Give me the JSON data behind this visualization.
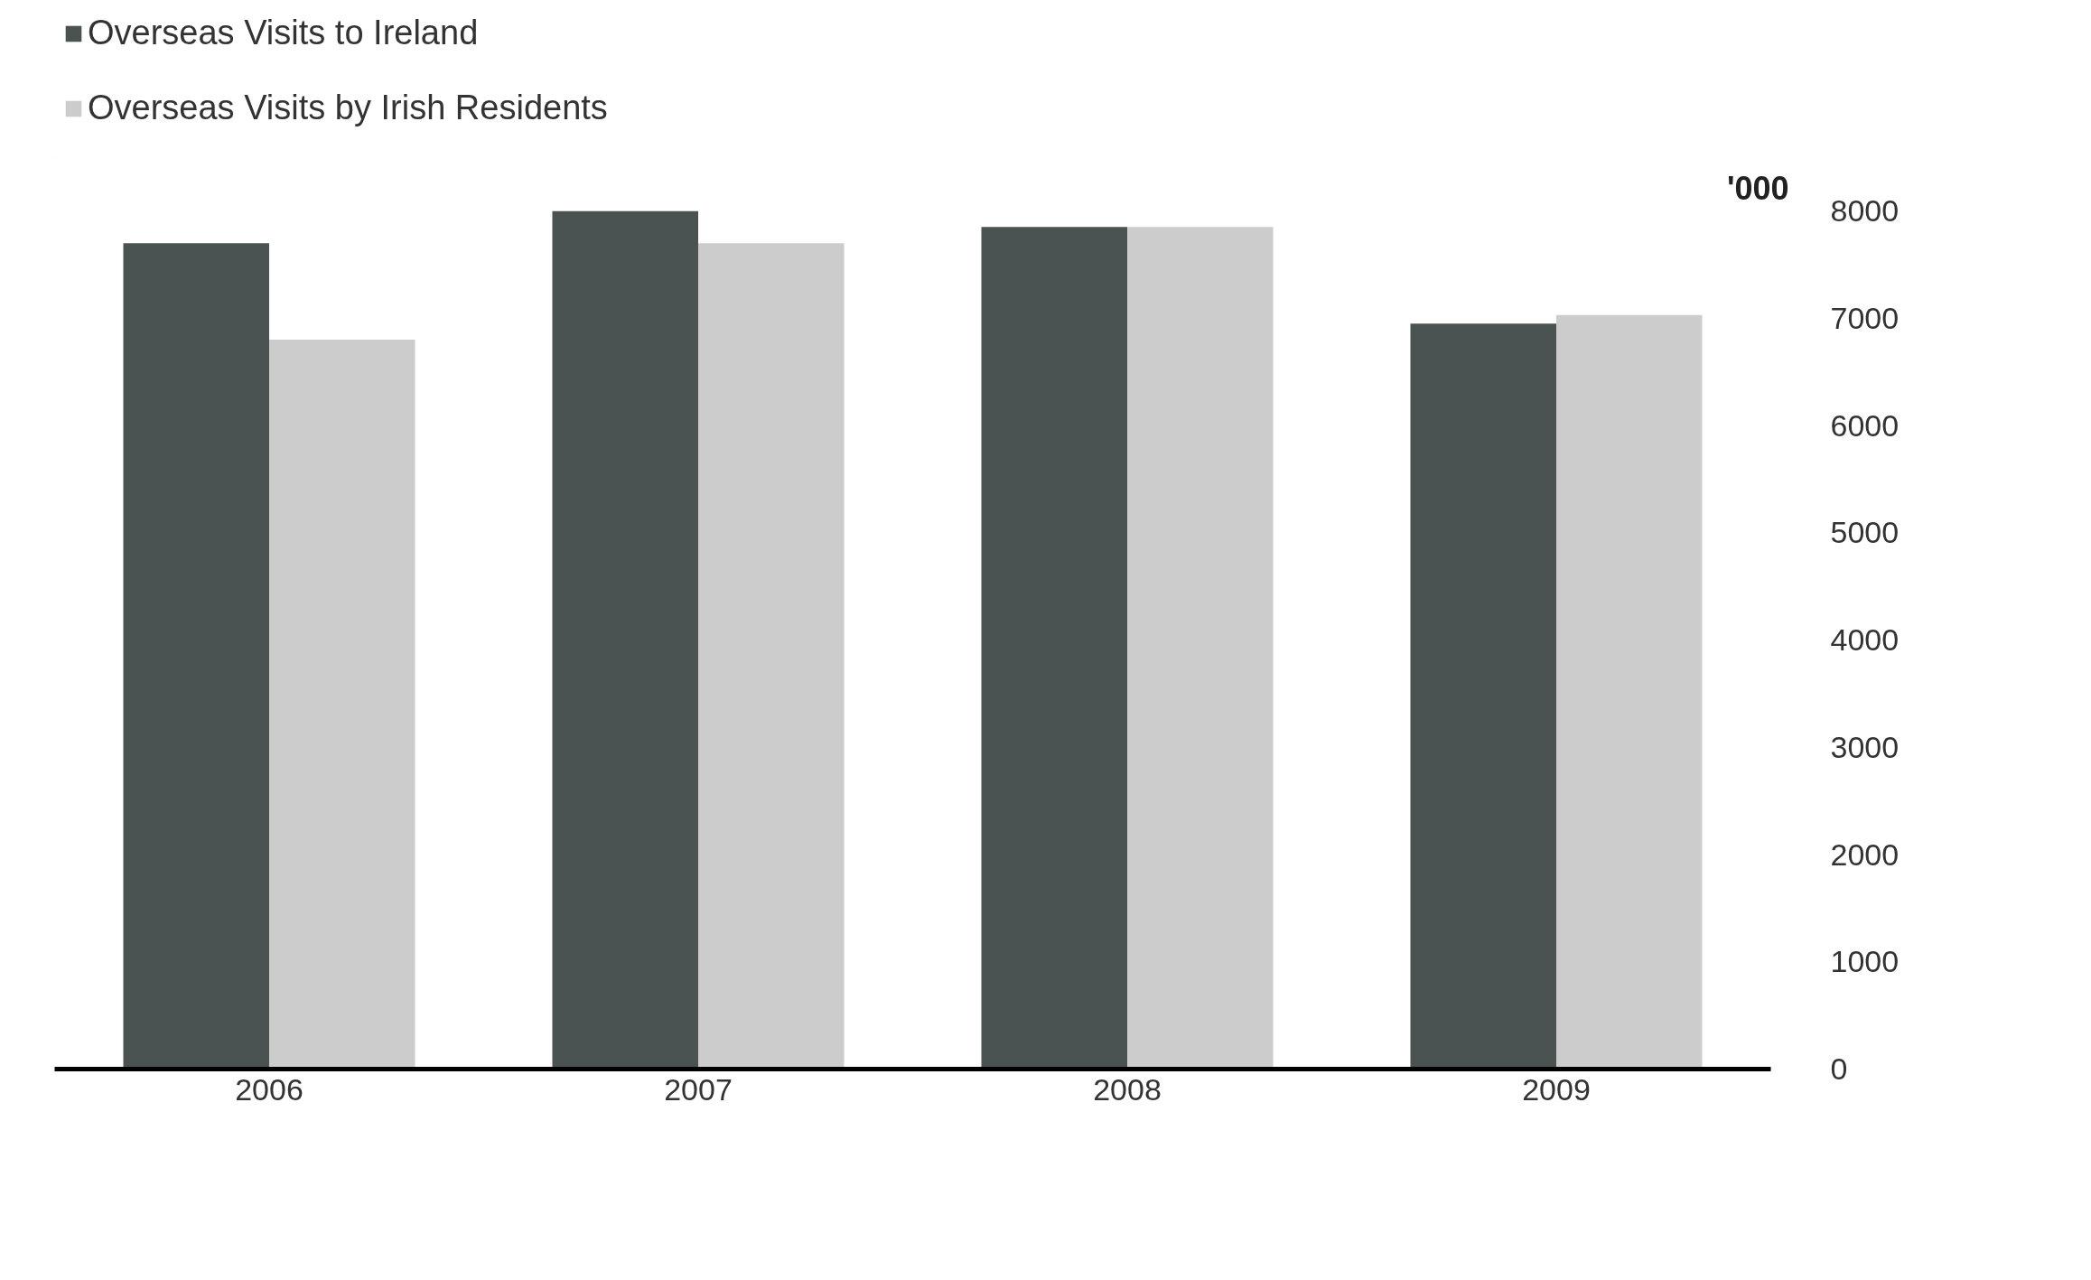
{
  "chart_data": {
    "type": "bar",
    "categories": [
      "2006",
      "2007",
      "2008",
      "2009"
    ],
    "ylabel": "'000",
    "series": [
      {
        "name": "Overseas Visits to Ireland",
        "color": "#4b5252",
        "values": [
          7700,
          8000,
          7850,
          6950
        ]
      },
      {
        "name": "Overseas Visits by Irish Residents",
        "color": "#cccccc",
        "values": [
          6800,
          7700,
          7850,
          7030
        ]
      }
    ],
    "ylim": [
      0,
      8000
    ],
    "yticks": [
      0,
      1000,
      2000,
      3000,
      4000,
      5000,
      6000,
      7000,
      8000
    ],
    "grid": false,
    "legend": "top left"
  }
}
